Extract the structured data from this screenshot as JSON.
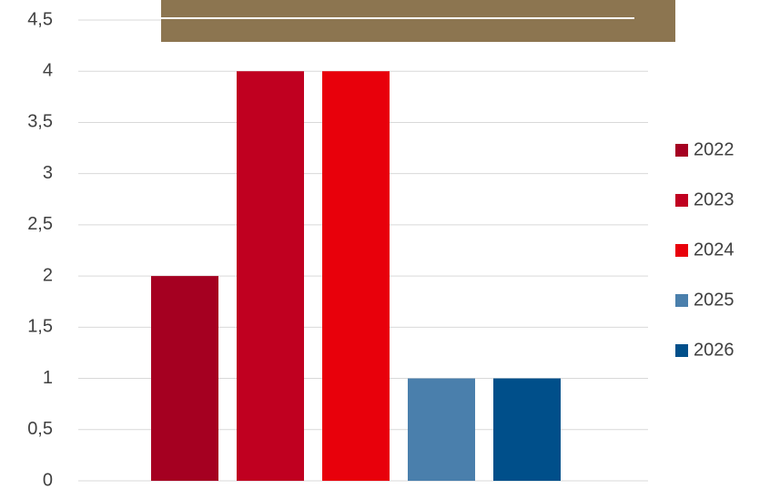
{
  "chart_data": {
    "type": "bar",
    "categories": [
      null
    ],
    "series": [
      {
        "name": "2022",
        "color": "#a50021",
        "values": [
          2
        ]
      },
      {
        "name": "2023",
        "color": "#c00020",
        "values": [
          4
        ]
      },
      {
        "name": "2024",
        "color": "#e8000b",
        "values": [
          4
        ]
      },
      {
        "name": "2025",
        "color": "#4a7fac",
        "values": [
          1
        ]
      },
      {
        "name": "2026",
        "color": "#004f8a",
        "values": [
          1
        ]
      }
    ],
    "ylim": [
      0,
      4.5
    ],
    "yticks": [
      0,
      {
        "value": 0.5,
        "label": "0,5"
      },
      1,
      {
        "value": 1.5,
        "label": "1,5"
      },
      2,
      {
        "value": 2.5,
        "label": "2,5"
      },
      3,
      {
        "value": 3.5,
        "label": "3,5"
      },
      4,
      {
        "value": 4.5,
        "label": "4,5"
      }
    ],
    "grid": true,
    "legend": "right"
  }
}
